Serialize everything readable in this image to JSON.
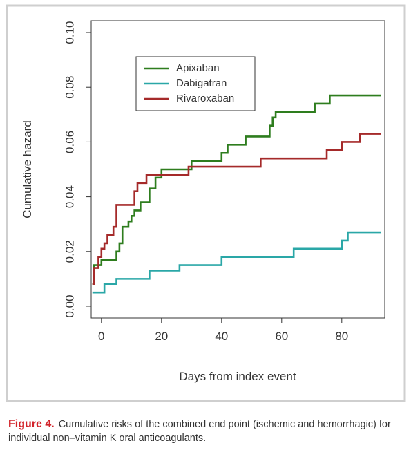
{
  "chart_data": {
    "type": "step",
    "y_label": "Cumulative hazard",
    "x_label": "Days from index event",
    "caption_label": "Figure 4.",
    "caption": "Cumulative risks of the combined end point (ischemic and hemorrhagic) for individual non–vitamin K oral anticoagulants.",
    "xlim": [
      -3.4,
      94.3
    ],
    "ylim": [
      -0.0043,
      0.1043
    ],
    "xticks": [
      0,
      20,
      40,
      60,
      80
    ],
    "yticks": [
      {
        "value": 0,
        "label": "0.00"
      },
      {
        "value": 0.02,
        "label": "0.02"
      },
      {
        "value": 0.04,
        "label": "0.04"
      },
      {
        "value": 0.06,
        "label": "0.06"
      },
      {
        "value": 0.08,
        "label": "0.08"
      },
      {
        "value": 0.1,
        "label": "0.10"
      }
    ],
    "legend": "upper-left",
    "series": [
      {
        "name": "Apixaban",
        "color": "#2e7d1e",
        "x": [
          -3,
          -2.5,
          0,
          4,
          5,
          6,
          7,
          9,
          10,
          11,
          13,
          16,
          18,
          20,
          30,
          40,
          42,
          48,
          56,
          57,
          58,
          71,
          76,
          93
        ],
        "values": [
          0.008,
          0.015,
          0.017,
          0.017,
          0.02,
          0.023,
          0.029,
          0.031,
          0.033,
          0.035,
          0.038,
          0.043,
          0.047,
          0.05,
          0.053,
          0.056,
          0.059,
          0.062,
          0.066,
          0.069,
          0.071,
          0.074,
          0.077,
          0.077
        ]
      },
      {
        "name": "Dabigatran",
        "color": "#2aa7a7",
        "x": [
          -3,
          1,
          5,
          16,
          26,
          40,
          64,
          80,
          82,
          93
        ],
        "values": [
          0.005,
          0.008,
          0.01,
          0.013,
          0.015,
          0.018,
          0.021,
          0.024,
          0.027,
          0.027
        ]
      },
      {
        "name": "Rivaroxaban",
        "color": "#a52a2a",
        "x": [
          -3,
          -2.5,
          -1,
          0,
          1,
          2,
          4,
          5,
          11,
          12,
          15,
          29,
          53,
          75,
          80,
          86,
          93
        ],
        "values": [
          0.008,
          0.014,
          0.018,
          0.021,
          0.023,
          0.026,
          0.029,
          0.037,
          0.042,
          0.045,
          0.048,
          0.051,
          0.054,
          0.057,
          0.06,
          0.063,
          0.063
        ]
      }
    ]
  }
}
